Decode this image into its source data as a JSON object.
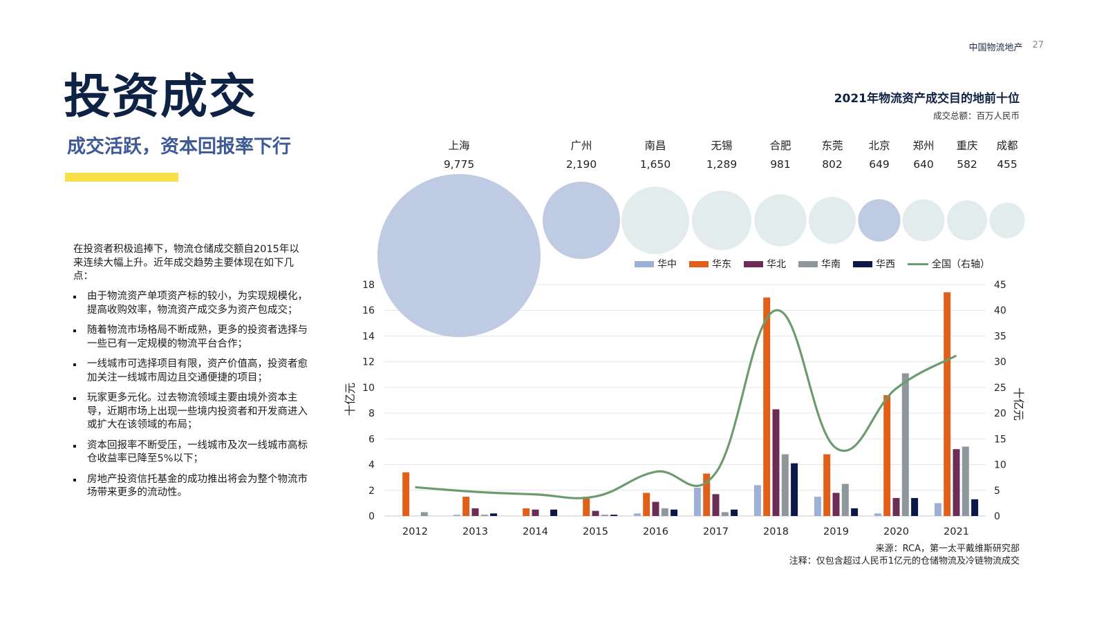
{
  "header": {
    "brand": "中国物流地产",
    "page": "27"
  },
  "title": "投资成交",
  "subtitle": "成交活跃，资本回报率下行",
  "intro": "在投资者积极追捧下，物流仓储成交额自2015年以来连续大幅上升。近年成交趋势主要体现在如下几点：",
  "bullets": [
    "由于物流资产单项资产标的较小，为实现规模化，提高收购效率，物流资产成交多为资产包成交；",
    "随着物流市场格局不断成熟，更多的投资者选择与一些已有一定规模的物流平台合作；",
    "一线城市可选择项目有限，资产价值高，投资者愈加关注一线城市周边且交通便捷的项目；",
    "玩家更多元化。过去物流领域主要由境外资本主导，近期市场上出现一些境内投资者和开发商进入或扩大在该领域的布局；",
    "资本回报率不断受压，一线城市及次一线城市高标仓收益率已降至5%以下；",
    "房地产投资信托基金的成功推出将会为整个物流市场带来更多的流动性。"
  ],
  "colors": {
    "navy": "#0e2244",
    "subtitle_blue": "#3d5a96",
    "accent_yellow": "#f7e047",
    "bubble_blue": "#bfcae3",
    "bubble_grey": "#e3ecec",
    "hz": "#9fb0d6",
    "hd": "#e0601a",
    "hb": "#6b2c55",
    "hn": "#8d979c",
    "hx": "#0b1848",
    "line": "#6d9b70"
  },
  "chart_data": [
    {
      "type": "bubble",
      "title": "2021年物流资产成交目的地前十位",
      "subtitle": "成交总额：百万人民币",
      "categories": [
        "上海",
        "广州",
        "南昌",
        "无锡",
        "合肥",
        "东莞",
        "北京",
        "郑州",
        "重庆",
        "成都"
      ],
      "values": [
        9775,
        2190,
        1650,
        1289,
        981,
        802,
        649,
        640,
        582,
        455
      ],
      "value_labels": [
        "9,775",
        "2,190",
        "1,650",
        "1,289",
        "981",
        "802",
        "649",
        "640",
        "582",
        "455"
      ],
      "highlight": [
        true,
        true,
        false,
        false,
        false,
        false,
        true,
        false,
        false,
        false
      ]
    },
    {
      "type": "bar",
      "categories": [
        "2012",
        "2013",
        "2014",
        "2015",
        "2016",
        "2017",
        "2018",
        "2019",
        "2020",
        "2021"
      ],
      "series": [
        {
          "name": "华中",
          "values": [
            0,
            0.1,
            0,
            0,
            0.2,
            2.2,
            2.4,
            1.5,
            0.2,
            1.0
          ]
        },
        {
          "name": "华东",
          "values": [
            3.4,
            1.5,
            0.6,
            1.5,
            1.8,
            3.3,
            17.0,
            4.8,
            9.4,
            17.4
          ]
        },
        {
          "name": "华北",
          "values": [
            0,
            0.6,
            0.5,
            0.4,
            1.1,
            1.7,
            8.3,
            1.8,
            1.4,
            5.2
          ]
        },
        {
          "name": "华南",
          "values": [
            0.3,
            0.1,
            0,
            0.1,
            0.6,
            0.3,
            4.8,
            2.5,
            11.1,
            5.4
          ]
        },
        {
          "name": "华西",
          "values": [
            0,
            0.2,
            0.5,
            0.1,
            0.5,
            0.5,
            4.1,
            0.6,
            1.4,
            1.3
          ]
        }
      ],
      "line_series": {
        "name": "全国（右轴）",
        "axis": "right",
        "values": [
          5.6,
          4.7,
          4.2,
          3.8,
          8.6,
          8.4,
          40.0,
          13.2,
          24.8,
          31.2
        ]
      },
      "ylabel": "十亿元",
      "ylabel_right": "十亿元",
      "ylim": [
        0,
        18
      ],
      "ylim_right": [
        0,
        45
      ],
      "yticks": [
        "0",
        "2",
        "4",
        "6",
        "8",
        "10",
        "12",
        "14",
        "16",
        "18"
      ],
      "yticks_right": [
        "0",
        "5",
        "10",
        "15",
        "20",
        "25",
        "30",
        "35",
        "40",
        "45"
      ],
      "grid": true,
      "legend_position": "top-right"
    }
  ],
  "source": {
    "line1": "来源：RCA，第一太平戴维斯研究部",
    "line2": "注释：仅包含超过人民币1亿元的仓储物流及冷链物流成交"
  }
}
